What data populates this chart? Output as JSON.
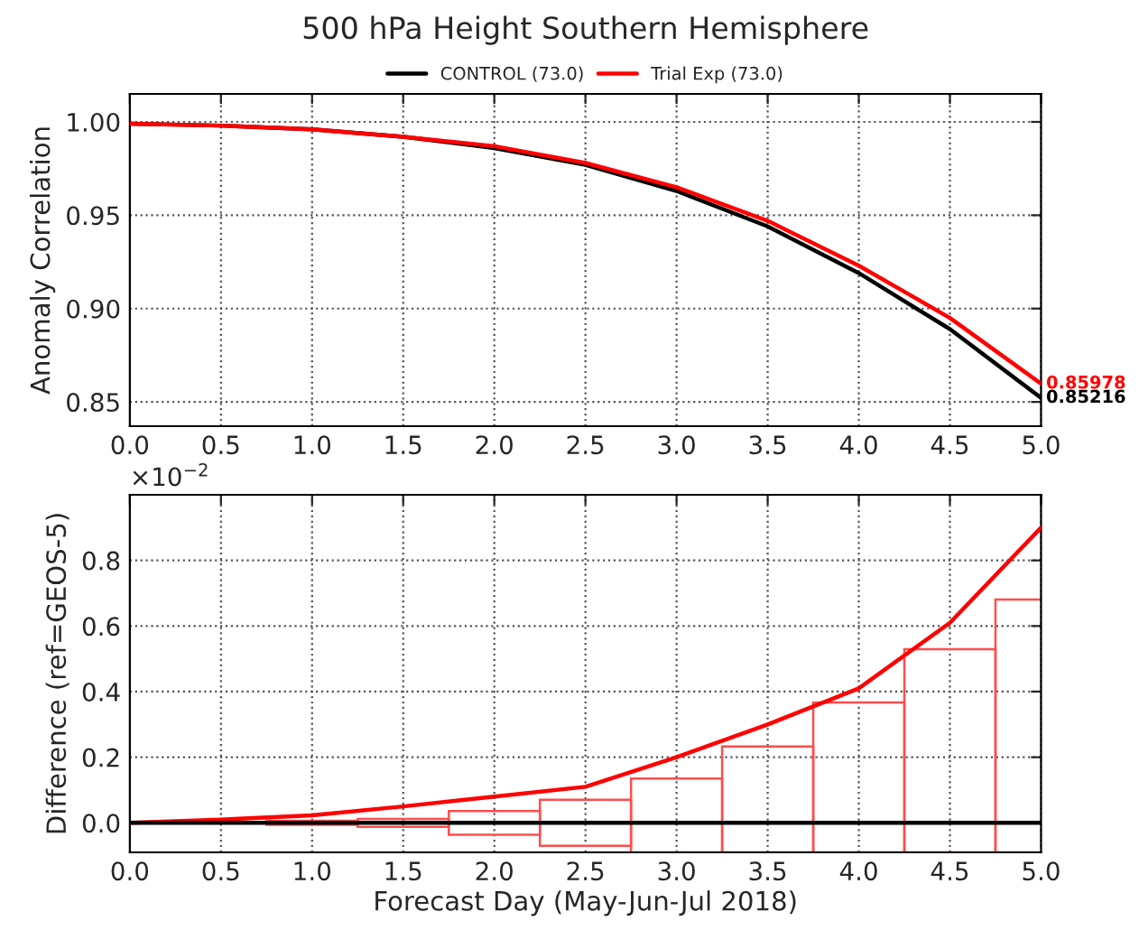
{
  "chart_data": [
    {
      "type": "line",
      "title": "500 hPa Height Southern Hemisphere",
      "ylabel": "Anomaly Correlation",
      "x": [
        0,
        0.5,
        1.0,
        1.5,
        2.0,
        2.5,
        3.0,
        3.5,
        4.0,
        4.5,
        5.0
      ],
      "series": [
        {
          "name": "CONTROL (73.0)",
          "color": "#000000",
          "values": [
            0.999,
            0.998,
            0.996,
            0.992,
            0.986,
            0.977,
            0.963,
            0.944,
            0.919,
            0.889,
            0.85216
          ]
        },
        {
          "name": "Trial Exp (73.0)",
          "color": "#ff0000",
          "values": [
            0.999,
            0.998,
            0.996,
            0.992,
            0.987,
            0.978,
            0.965,
            0.947,
            0.923,
            0.895,
            0.85978
          ]
        }
      ],
      "annotations": [
        {
          "text": "0.85978",
          "x": 5.0,
          "y": 0.85978
        },
        {
          "text": "0.85216",
          "x": 5.0,
          "y": 0.85216
        }
      ],
      "xlim": [
        0,
        5
      ],
      "xticks": [
        {
          "value": 0,
          "label": "0.0"
        },
        0.5,
        {
          "value": 1,
          "label": "1.0"
        },
        1.5,
        {
          "value": 2,
          "label": "2.0"
        },
        2.5,
        {
          "value": 3,
          "label": "3.0"
        },
        3.5,
        {
          "value": 4,
          "label": "4.0"
        },
        4.5,
        {
          "value": 5,
          "label": "5.0"
        }
      ],
      "ylim": [
        0.837,
        1.015
      ],
      "yticks": [
        0.85,
        {
          "value": 0.9,
          "label": "0.90"
        },
        0.95,
        {
          "value": 1.0,
          "label": "1.00"
        }
      ],
      "grid": true,
      "legend": "top",
      "line_style": "solid",
      "marker": "none"
    },
    {
      "type": "line",
      "xlabel": "Forecast Day (May-Jun-Jul 2018)",
      "ylabel": "Difference (ref=GEOS-5)",
      "x": [
        0,
        0.5,
        1.0,
        1.5,
        2.0,
        2.5,
        3.0,
        3.5,
        4.0,
        4.5,
        5.0
      ],
      "series": [
        {
          "color": "#ff0000",
          "values": [
            0,
            0.01,
            0.023,
            0.05,
            0.08,
            0.11,
            0.2,
            0.3,
            0.41,
            0.61,
            0.9
          ]
        },
        {
          "color": "#000000",
          "values": [
            0,
            0,
            0,
            0,
            0,
            0,
            0,
            0,
            0,
            0,
            0
          ]
        },
        {
          "type": "bar",
          "color": "#ff4d4d",
          "x": [
            1.0,
            1.5,
            2.0,
            2.5,
            3.0,
            3.5,
            4.0,
            4.5,
            5.0
          ],
          "base": [
            -0.006,
            -0.012,
            -0.036,
            -0.07,
            -0.09,
            -0.09,
            -0.09,
            -0.09,
            -0.09
          ],
          "values": [
            0.012,
            0.024,
            0.072,
            0.14,
            0.225,
            0.323,
            0.457,
            0.619,
            0.771
          ]
        }
      ],
      "annotations": [
        "×10$^{−2}$"
      ],
      "xlim": [
        0,
        5
      ],
      "xticks": [
        {
          "value": 0,
          "label": "0.0"
        },
        0.5,
        {
          "value": 1,
          "label": "1.0"
        },
        1.5,
        {
          "value": 2,
          "label": "2.0"
        },
        2.5,
        {
          "value": 3,
          "label": "3.0"
        },
        3.5,
        {
          "value": 4,
          "label": "4.0"
        },
        4.5,
        {
          "value": 5,
          "label": "5.0"
        }
      ],
      "ylim": [
        -0.09,
        1.0
      ],
      "yticks": [
        {
          "value": 0,
          "label": "0.0"
        },
        0.2,
        0.4,
        0.6,
        0.8
      ],
      "grid": true,
      "line_style": "solid",
      "marker": "none"
    }
  ]
}
